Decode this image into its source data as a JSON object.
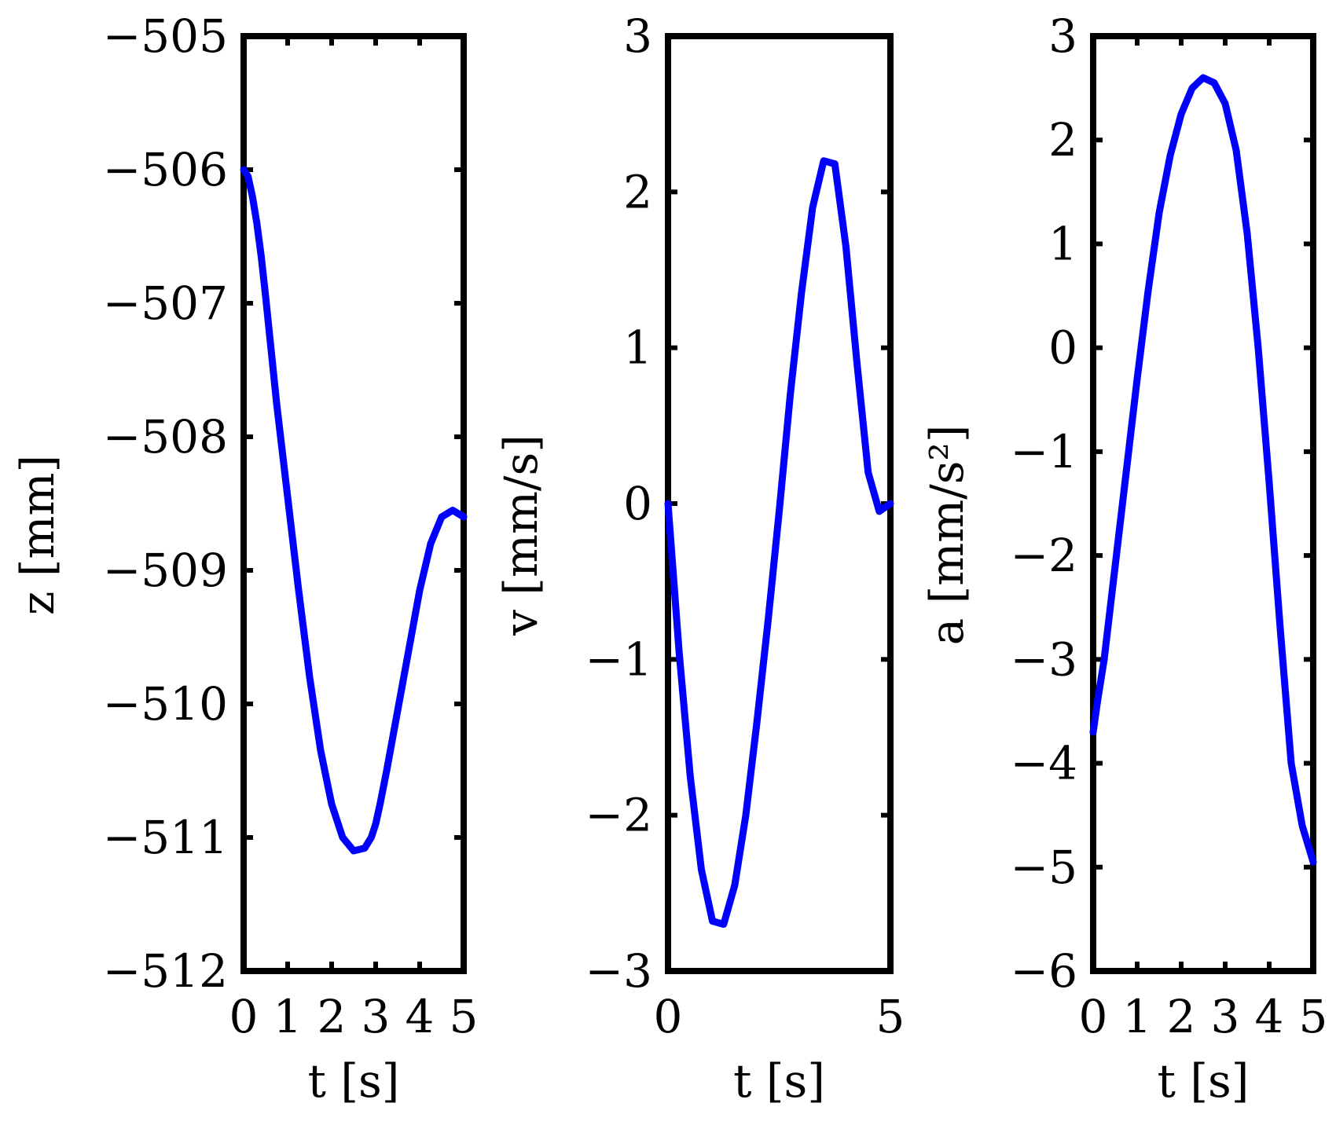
{
  "chart_data": [
    {
      "type": "line",
      "xlabel": "t [s]",
      "ylabel": "z [mm]",
      "xlim": [
        0,
        5
      ],
      "ylim": [
        -512,
        -505
      ],
      "xticks": [
        "0",
        "1",
        "2",
        "3",
        "4",
        "5"
      ],
      "yticks": [
        "−512",
        "−511",
        "−510",
        "−509",
        "−508",
        "−507",
        "−506",
        "−505"
      ],
      "grid": false,
      "line_color": "#0000ff",
      "series": [
        {
          "x": [
            0,
            0.1,
            0.2,
            0.3,
            0.4,
            0.5,
            0.75,
            1.0,
            1.25,
            1.5,
            1.75,
            2.0,
            2.25,
            2.5,
            2.75,
            2.9,
            3.0,
            3.1,
            3.25,
            3.5,
            3.75,
            4.0,
            4.25,
            4.5,
            4.75,
            5.0
          ],
          "y": [
            -506.0,
            -506.05,
            -506.2,
            -506.4,
            -506.65,
            -506.95,
            -507.75,
            -508.45,
            -509.15,
            -509.8,
            -510.35,
            -510.75,
            -511.0,
            -511.1,
            -511.08,
            -511.0,
            -510.9,
            -510.75,
            -510.5,
            -510.05,
            -509.6,
            -509.15,
            -508.8,
            -508.6,
            -508.55,
            -508.6
          ]
        }
      ]
    },
    {
      "type": "line",
      "xlabel": "t [s]",
      "ylabel": "v [mm/s]",
      "xlim": [
        0,
        5
      ],
      "ylim": [
        -3,
        3
      ],
      "xticks": [
        "0",
        "5"
      ],
      "yticks": [
        "−3",
        "−2",
        "−1",
        "0",
        "1",
        "2",
        "3"
      ],
      "grid": false,
      "line_color": "#0000ff",
      "series": [
        {
          "x": [
            0,
            0.25,
            0.5,
            0.75,
            1.0,
            1.25,
            1.5,
            1.75,
            2.0,
            2.25,
            2.5,
            2.75,
            3.0,
            3.25,
            3.5,
            3.75,
            4.0,
            4.25,
            4.5,
            4.75,
            5.0
          ],
          "y": [
            0.0,
            -0.95,
            -1.75,
            -2.35,
            -2.68,
            -2.7,
            -2.45,
            -2.0,
            -1.4,
            -0.75,
            -0.05,
            0.7,
            1.35,
            1.9,
            2.2,
            2.18,
            1.65,
            0.9,
            0.2,
            -0.05,
            0.0
          ]
        }
      ]
    },
    {
      "type": "line",
      "xlabel": "t [s]",
      "ylabel": "a [mm/s²]",
      "xlim": [
        0,
        5
      ],
      "ylim": [
        -6,
        3
      ],
      "xticks": [
        "0",
        "1",
        "2",
        "3",
        "4",
        "5"
      ],
      "yticks": [
        "−6",
        "−5",
        "−4",
        "−3",
        "−2",
        "−1",
        "0",
        "1",
        "2",
        "3"
      ],
      "grid": false,
      "line_color": "#0000ff",
      "series": [
        {
          "x": [
            0,
            0.1,
            0.25,
            0.5,
            0.75,
            1.0,
            1.25,
            1.5,
            1.75,
            2.0,
            2.25,
            2.5,
            2.75,
            3.0,
            3.25,
            3.5,
            3.75,
            4.0,
            4.25,
            4.5,
            4.75,
            5.0
          ],
          "y": [
            -3.7,
            -3.4,
            -3.0,
            -2.1,
            -1.2,
            -0.3,
            0.55,
            1.3,
            1.85,
            2.25,
            2.5,
            2.6,
            2.55,
            2.35,
            1.9,
            1.1,
            0.0,
            -1.3,
            -2.7,
            -4.0,
            -4.6,
            -4.95
          ]
        }
      ]
    }
  ]
}
